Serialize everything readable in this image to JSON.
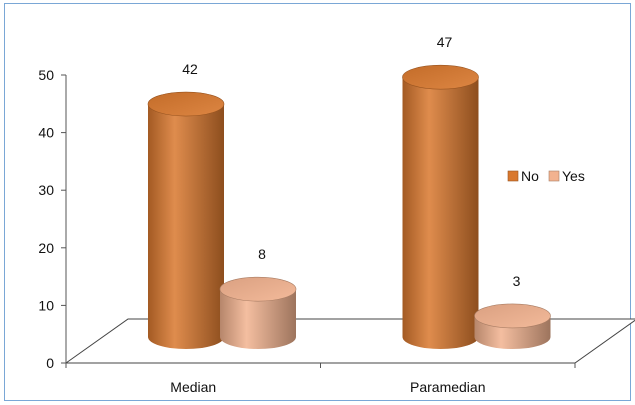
{
  "chart_data": {
    "type": "bar",
    "style": "3d-cylinder",
    "categories": [
      "Median",
      "Paramedian"
    ],
    "series": [
      {
        "name": "No",
        "values": [
          42,
          47
        ],
        "color": "#d9782e"
      },
      {
        "name": "Yes",
        "values": [
          8,
          3
        ],
        "color": "#f2b28f"
      }
    ],
    "ylim": [
      0,
      50
    ],
    "yticks": [
      0,
      10,
      20,
      30,
      40,
      50
    ],
    "legend_position": "right",
    "grid": false
  }
}
